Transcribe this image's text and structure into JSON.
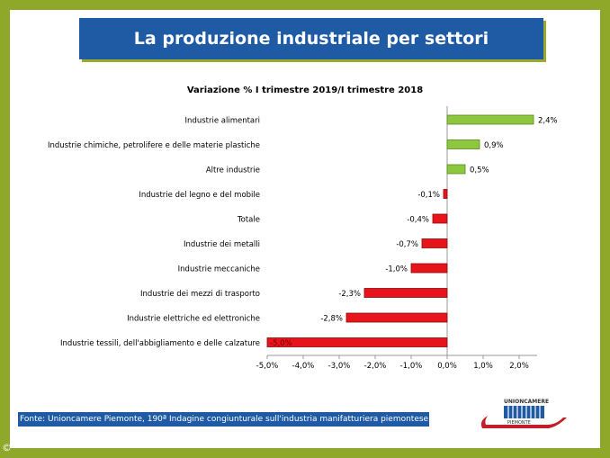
{
  "title": "La produzione industriale per settori",
  "source": "Fonte: Unioncamere Piemonte, 190ª Indagine congiunturale sull'industria manifatturiera piemontese",
  "copyright": "©",
  "logo": {
    "top": "UNIONCAMERE",
    "bottom": "PIEMONTE"
  },
  "colors": {
    "positive": "#8dc63f",
    "negative": "#e8141b",
    "title_bg": "#1f5aa5"
  },
  "chart_data": {
    "type": "bar",
    "orientation": "horizontal",
    "title": "Variazione % I trimestre 2019/I trimestre 2018",
    "categories": [
      "Industrie alimentari",
      "Industrie chimiche, petrolifere e delle materie plastiche",
      "Altre industrie",
      "Industrie del legno e del mobile",
      "Totale",
      "Industrie dei metalli",
      "Industrie meccaniche",
      "Industrie dei mezzi di trasporto",
      "Industrie elettriche ed elettroniche",
      "Industrie tessili, dell'abbigliamento e delle calzature"
    ],
    "values": [
      2.4,
      0.9,
      0.5,
      -0.1,
      -0.4,
      -0.7,
      -1.0,
      -2.3,
      -2.8,
      -5.0
    ],
    "labels": [
      "2,4%",
      "0,9%",
      "0,5%",
      "-0,1%",
      "-0,4%",
      "-0,7%",
      "-1,0%",
      "-2,3%",
      "-2,8%",
      "-5,0%"
    ],
    "xlim": [
      -5,
      2.5
    ],
    "ticks": [
      -5,
      -4,
      -3,
      -2,
      -1,
      0,
      1,
      2
    ],
    "tick_labels": [
      "-5,0%",
      "-4,0%",
      "-3,0%",
      "-2,0%",
      "-1,0%",
      "0,0%",
      "1,0%",
      "2,0%"
    ]
  }
}
